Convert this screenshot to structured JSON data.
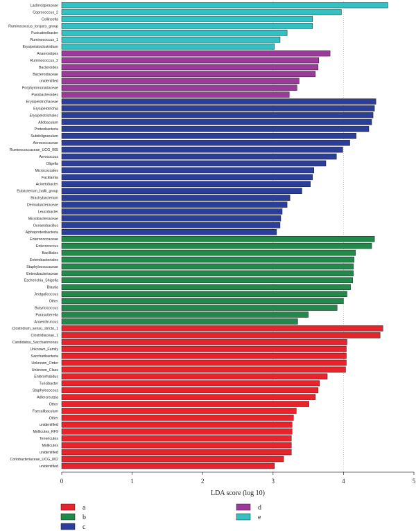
{
  "chart_data": {
    "type": "bar",
    "orientation": "horizontal",
    "xlabel": "LDA score (log 10)",
    "xlim": [
      0,
      5
    ],
    "xticks": [
      0,
      1,
      2,
      3,
      4,
      5
    ],
    "grid": "dotted vertical lines at x = 3 and 4",
    "legend_placement": "bottom",
    "group_colors": {
      "a": "#e8232b",
      "b": "#21894a",
      "c": "#2b3f9a",
      "d": "#9b3a9b",
      "e": "#35c0c1"
    },
    "legend": [
      {
        "name": "a",
        "color": "#e8232b"
      },
      {
        "name": "b",
        "color": "#21894a"
      },
      {
        "name": "c",
        "color": "#2b3f9a"
      },
      {
        "name": "d",
        "color": "#9b3a9b"
      },
      {
        "name": "e",
        "color": "#35c0c1"
      }
    ],
    "bars": [
      {
        "label": "Lachnospiraceae",
        "value": 4.63,
        "group": "e"
      },
      {
        "label": "Coprococcus_2",
        "value": 3.97,
        "group": "e"
      },
      {
        "label": "Collinsella",
        "value": 3.56,
        "group": "e"
      },
      {
        "label": "Ruminococcus_torques_group",
        "value": 3.56,
        "group": "e"
      },
      {
        "label": "Fusicatenibacter",
        "value": 3.2,
        "group": "e"
      },
      {
        "label": "Ruminococcus_1",
        "value": 3.1,
        "group": "e"
      },
      {
        "label": "Erysipelatoclostridium",
        "value": 3.02,
        "group": "e"
      },
      {
        "label": "Anaerostipes",
        "value": 3.81,
        "group": "d"
      },
      {
        "label": "Ruminococcus_2",
        "value": 3.65,
        "group": "d"
      },
      {
        "label": "Bacteroides",
        "value": 3.64,
        "group": "d"
      },
      {
        "label": "Bacteroidaceae",
        "value": 3.6,
        "group": "d"
      },
      {
        "label": "unidentified",
        "value": 3.37,
        "group": "d"
      },
      {
        "label": "Porphyromonadaceae",
        "value": 3.34,
        "group": "d"
      },
      {
        "label": "Parabacteroides",
        "value": 3.23,
        "group": "d"
      },
      {
        "label": "Erysipelotrichaceae",
        "value": 4.46,
        "group": "c"
      },
      {
        "label": "Erysipelotrichia",
        "value": 4.44,
        "group": "c"
      },
      {
        "label": "Erysipelotrichales",
        "value": 4.42,
        "group": "c"
      },
      {
        "label": "Allobaculum",
        "value": 4.4,
        "group": "c"
      },
      {
        "label": "Proteobacteria",
        "value": 4.36,
        "group": "c"
      },
      {
        "label": "Subdoligranulum",
        "value": 4.18,
        "group": "c"
      },
      {
        "label": "Aerococcaceae",
        "value": 4.09,
        "group": "c"
      },
      {
        "label": "Ruminococcaceae_UCG_005",
        "value": 3.99,
        "group": "c"
      },
      {
        "label": "Aerococcus",
        "value": 3.9,
        "group": "c"
      },
      {
        "label": "Oligella",
        "value": 3.75,
        "group": "c"
      },
      {
        "label": "Micrococcales",
        "value": 3.58,
        "group": "c"
      },
      {
        "label": "Facklamia",
        "value": 3.56,
        "group": "c"
      },
      {
        "label": "Acinetobacter",
        "value": 3.53,
        "group": "c"
      },
      {
        "label": "Eubacterium_hallii_group",
        "value": 3.41,
        "group": "c"
      },
      {
        "label": "Brachybacterium",
        "value": 3.24,
        "group": "c"
      },
      {
        "label": "Dermabacteraceae",
        "value": 3.2,
        "group": "c"
      },
      {
        "label": "Leucobacter",
        "value": 3.13,
        "group": "c"
      },
      {
        "label": "Microbacteriaceae",
        "value": 3.11,
        "group": "c"
      },
      {
        "label": "Oceanobacillus",
        "value": 3.1,
        "group": "c"
      },
      {
        "label": "Alphaproteobacteria",
        "value": 3.05,
        "group": "c"
      },
      {
        "label": "Enterococcaceae",
        "value": 4.44,
        "group": "b"
      },
      {
        "label": "Enterococcus",
        "value": 4.4,
        "group": "b"
      },
      {
        "label": "Bacilliales",
        "value": 4.17,
        "group": "b"
      },
      {
        "label": "Enterobacteriales",
        "value": 4.15,
        "group": "b"
      },
      {
        "label": "Staphylococcaceae",
        "value": 4.14,
        "group": "b"
      },
      {
        "label": "Enterobacteriaceae",
        "value": 4.14,
        "group": "b"
      },
      {
        "label": "Escherichia_Shigella",
        "value": 4.13,
        "group": "b"
      },
      {
        "label": "Blautia",
        "value": 4.1,
        "group": "b"
      },
      {
        "label": "Jeotgalicoccus",
        "value": 4.05,
        "group": "b"
      },
      {
        "label": "Other",
        "value": 4.0,
        "group": "b"
      },
      {
        "label": "Butyricicoccus",
        "value": 3.91,
        "group": "b"
      },
      {
        "label": "Parasutterella",
        "value": 3.5,
        "group": "b"
      },
      {
        "label": "Anaerotruncus",
        "value": 3.35,
        "group": "b"
      },
      {
        "label": "Clostridium_sensu_stricto_1",
        "value": 4.56,
        "group": "a"
      },
      {
        "label": "Clostridiaceae_1",
        "value": 4.52,
        "group": "a"
      },
      {
        "label": "Candidatus_Saccharimonas",
        "value": 4.05,
        "group": "a"
      },
      {
        "label": "Unknown_Family",
        "value": 4.04,
        "group": "a"
      },
      {
        "label": "Saccharibacteria",
        "value": 4.04,
        "group": "a"
      },
      {
        "label": "Unknown_Order",
        "value": 4.04,
        "group": "a"
      },
      {
        "label": "Unknown_Class",
        "value": 4.03,
        "group": "a"
      },
      {
        "label": "Enterorhabdus",
        "value": 3.77,
        "group": "a"
      },
      {
        "label": "Turicibacter",
        "value": 3.66,
        "group": "a"
      },
      {
        "label": "Staphylococcus",
        "value": 3.64,
        "group": "a"
      },
      {
        "label": "Adlercreutzia",
        "value": 3.6,
        "group": "a"
      },
      {
        "label": "Other",
        "value": 3.51,
        "group": "a"
      },
      {
        "label": "Faecalibaculum",
        "value": 3.33,
        "group": "a"
      },
      {
        "label": "Other",
        "value": 3.29,
        "group": "a"
      },
      {
        "label": "unidentified",
        "value": 3.27,
        "group": "a"
      },
      {
        "label": "Mollicutes_RF9",
        "value": 3.27,
        "group": "a"
      },
      {
        "label": "Tenericutes",
        "value": 3.26,
        "group": "a"
      },
      {
        "label": "Mollicutes",
        "value": 3.26,
        "group": "a"
      },
      {
        "label": "unidentified",
        "value": 3.26,
        "group": "a"
      },
      {
        "label": "Coriobacteriaceae_UCG_002",
        "value": 3.15,
        "group": "a"
      },
      {
        "label": "unidentified",
        "value": 3.02,
        "group": "a"
      }
    ]
  }
}
